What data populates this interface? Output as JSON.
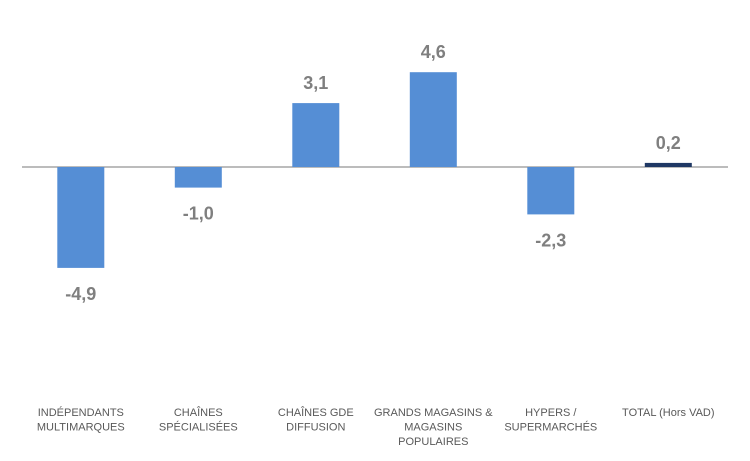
{
  "chart_data": {
    "type": "bar",
    "categories": [
      [
        "INDÉPENDANTS",
        "MULTIMARQUES"
      ],
      [
        "CHAÎNES",
        "SPÉCIALISÉES"
      ],
      [
        "CHAÎNES GDE",
        "DIFFUSION"
      ],
      [
        "GRANDS MAGASINS &",
        "MAGASINS",
        "POPULAIRES"
      ],
      [
        "HYPERS /",
        "SUPERMARCHÉS"
      ],
      [
        "TOTAL (Hors VAD)"
      ]
    ],
    "values": [
      -4.9,
      -1.0,
      3.1,
      4.6,
      -2.3,
      0.2
    ],
    "value_labels": [
      "-4,9",
      "-1,0",
      "3,1",
      "4,6",
      "-2,3",
      "0,2"
    ],
    "bar_colors": [
      "#558ed5",
      "#558ed5",
      "#558ed5",
      "#558ed5",
      "#558ed5",
      "#1f3864"
    ],
    "title": "",
    "xlabel": "",
    "ylabel": "",
    "grid": false,
    "legend": "none"
  }
}
